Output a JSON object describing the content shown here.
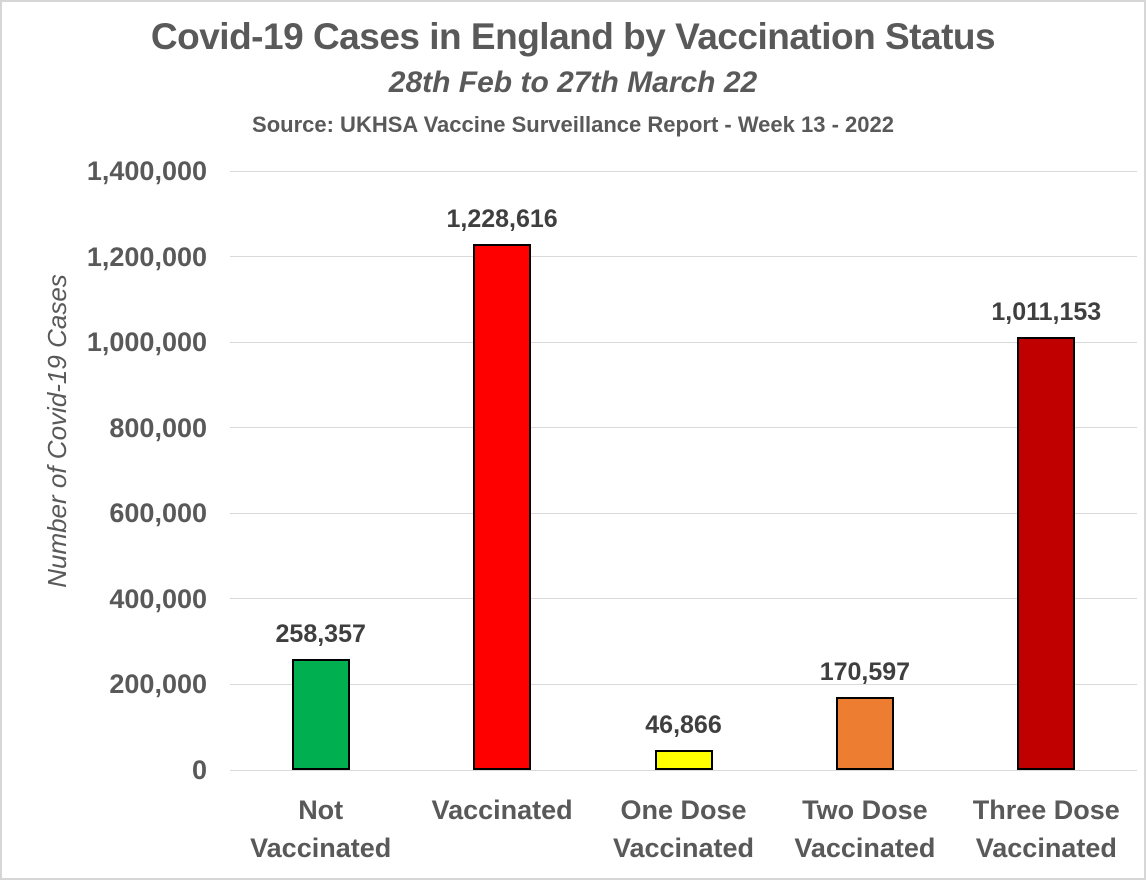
{
  "header": {
    "title": "Covid-19 Cases in England by Vaccination Status",
    "subtitle": "28th Feb to 27th March 22",
    "source": "Source: UKHSA Vaccine Surveillance Report - Week 13 - 2022"
  },
  "chart_data": {
    "type": "bar",
    "title": "Covid-19 Cases in England by Vaccination Status",
    "subtitle": "28th Feb to 27th March 22",
    "source": "Source: UKHSA Vaccine Surveillance Report - Week 13 - 2022",
    "categories": [
      "Not Vaccinated",
      "Vaccinated",
      "One Dose Vaccinated",
      "Two Dose Vaccinated",
      "Three Dose Vaccinated"
    ],
    "categories_display": [
      "Not\nVaccinated",
      "Vaccinated",
      "One Dose\nVaccinated",
      "Two Dose\nVaccinated",
      "Three Dose\nVaccinated"
    ],
    "values": [
      258357,
      1228616,
      46866,
      170597,
      1011153
    ],
    "value_labels": [
      "258,357",
      "1,228,616",
      "46,866",
      "170,597",
      "1,011,153"
    ],
    "bar_colors": [
      "#00B050",
      "#FF0000",
      "#FFFF00",
      "#ED7D31",
      "#C00000"
    ],
    "bar_border_color": "#000000",
    "xlabel": "",
    "ylabel": "Number of Covid-19 Cases",
    "ylim": [
      0,
      1400000
    ],
    "yticks": [
      0,
      200000,
      400000,
      600000,
      800000,
      1000000,
      1200000,
      1400000
    ],
    "ytick_labels": [
      "0",
      "200,000",
      "400,000",
      "600,000",
      "800,000",
      "1,000,000",
      "1,200,000",
      "1,400,000"
    ],
    "grid": "horizontal",
    "gridline_color": "#D9D9D9",
    "legend": "none"
  },
  "colors": {
    "title_text": "#595959",
    "axis_text": "#595959",
    "data_label_text": "#3F3F3F",
    "background": "#FFFFFF",
    "page_border": "#D6D6D6"
  }
}
